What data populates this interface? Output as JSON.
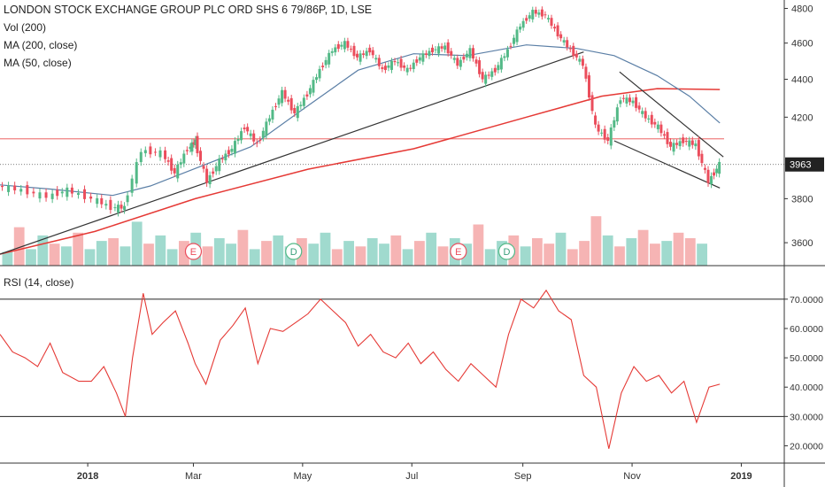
{
  "header": {
    "title": "LONDON STOCK EXCHANGE GROUP PLC ORD SHS 6 79/86P, 1D, LSE",
    "legend": [
      "Vol (200)",
      "MA (200, close)",
      "MA (50, close)"
    ]
  },
  "colors": {
    "up": "#53b987",
    "down": "#eb4d5c",
    "ma200": "#e53935",
    "ma50": "#5b7fa6",
    "trendline": "#333333",
    "resistance": "#f08080",
    "rsi": "#e53935",
    "vol_up": "#8fd3c6",
    "vol_down": "#f4a7a7"
  },
  "price_axis": {
    "ticks": [
      "4800",
      "4600",
      "4400",
      "4200",
      "3800",
      "3600"
    ],
    "last_price": "3963"
  },
  "rsi_panel": {
    "title": "RSI (14, close)",
    "ticks": [
      "70.0000",
      "60.0000",
      "50.0000",
      "40.0000",
      "30.0000",
      "20.0000"
    ],
    "overbought": 70,
    "oversold": 30
  },
  "time_axis": {
    "labels": [
      "2018",
      "Mar",
      "May",
      "Jul",
      "Sep",
      "Nov",
      "2019"
    ]
  },
  "events": [
    {
      "label": "E",
      "date": "2018-03-01"
    },
    {
      "label": "D",
      "date": "2018-04-26"
    },
    {
      "label": "E",
      "date": "2018-07-27"
    },
    {
      "label": "D",
      "date": "2018-08-23"
    }
  ],
  "chart_data": [
    {
      "type": "line",
      "name": "price",
      "x_range": [
        "2017-11-13",
        "2019-01-25"
      ],
      "ylim": [
        3500,
        4850
      ],
      "y_log": true,
      "close_path": [
        [
          "2017-11-13",
          3860
        ],
        [
          "2017-11-27",
          3840
        ],
        [
          "2017-12-11",
          3810
        ],
        [
          "2017-12-22",
          3840
        ],
        [
          "2018-01-05",
          3800
        ],
        [
          "2018-01-15",
          3760
        ],
        [
          "2018-01-22",
          3760
        ],
        [
          "2018-02-01",
          4030
        ],
        [
          "2018-02-12",
          4020
        ],
        [
          "2018-02-19",
          3920
        ],
        [
          "2018-02-26",
          4040
        ],
        [
          "2018-03-02",
          4080
        ],
        [
          "2018-03-09",
          3880
        ],
        [
          "2018-03-16",
          3980
        ],
        [
          "2018-03-23",
          4040
        ],
        [
          "2018-03-30",
          4150
        ],
        [
          "2018-04-06",
          4060
        ],
        [
          "2018-04-13",
          4200
        ],
        [
          "2018-04-20",
          4330
        ],
        [
          "2018-04-27",
          4220
        ],
        [
          "2018-05-04",
          4320
        ],
        [
          "2018-05-11",
          4450
        ],
        [
          "2018-05-18",
          4560
        ],
        [
          "2018-05-25",
          4600
        ],
        [
          "2018-06-01",
          4520
        ],
        [
          "2018-06-08",
          4560
        ],
        [
          "2018-06-15",
          4450
        ],
        [
          "2018-06-22",
          4500
        ],
        [
          "2018-06-29",
          4450
        ],
        [
          "2018-07-06",
          4520
        ],
        [
          "2018-07-13",
          4560
        ],
        [
          "2018-07-20",
          4580
        ],
        [
          "2018-07-27",
          4480
        ],
        [
          "2018-08-03",
          4560
        ],
        [
          "2018-08-10",
          4400
        ],
        [
          "2018-08-17",
          4450
        ],
        [
          "2018-08-24",
          4560
        ],
        [
          "2018-08-31",
          4700
        ],
        [
          "2018-09-07",
          4780
        ],
        [
          "2018-09-14",
          4760
        ],
        [
          "2018-09-21",
          4650
        ],
        [
          "2018-09-28",
          4560
        ],
        [
          "2018-10-05",
          4480
        ],
        [
          "2018-10-12",
          4150
        ],
        [
          "2018-10-19",
          4080
        ],
        [
          "2018-10-26",
          4300
        ],
        [
          "2018-11-02",
          4280
        ],
        [
          "2018-11-09",
          4200
        ],
        [
          "2018-11-16",
          4150
        ],
        [
          "2018-11-23",
          4050
        ],
        [
          "2018-11-30",
          4080
        ],
        [
          "2018-12-07",
          4060
        ],
        [
          "2018-12-14",
          3880
        ],
        [
          "2018-12-20",
          3963
        ]
      ],
      "ma200": [
        [
          "2017-11-13",
          3550
        ],
        [
          "2018-01-05",
          3650
        ],
        [
          "2018-03-02",
          3800
        ],
        [
          "2018-05-04",
          3940
        ],
        [
          "2018-07-02",
          4040
        ],
        [
          "2018-09-03",
          4200
        ],
        [
          "2018-10-15",
          4310
        ],
        [
          "2018-11-15",
          4350
        ],
        [
          "2018-12-20",
          4345
        ]
      ],
      "ma50": [
        [
          "2017-11-13",
          3865
        ],
        [
          "2017-12-11",
          3845
        ],
        [
          "2018-01-15",
          3815
        ],
        [
          "2018-02-05",
          3860
        ],
        [
          "2018-03-01",
          3940
        ],
        [
          "2018-04-02",
          4050
        ],
        [
          "2018-05-01",
          4240
        ],
        [
          "2018-06-01",
          4450
        ],
        [
          "2018-07-02",
          4540
        ],
        [
          "2018-08-01",
          4530
        ],
        [
          "2018-09-03",
          4590
        ],
        [
          "2018-10-01",
          4570
        ],
        [
          "2018-10-22",
          4530
        ],
        [
          "2018-11-15",
          4420
        ],
        [
          "2018-12-03",
          4310
        ],
        [
          "2018-12-20",
          4170
        ]
      ],
      "trendlines": [
        [
          [
            "2017-11-13",
            3550
          ],
          [
            "2018-10-05",
            4550
          ]
        ],
        [
          [
            "2018-10-22",
            4080
          ],
          [
            "2018-12-20",
            3850
          ]
        ],
        [
          [
            "2018-10-25",
            4440
          ],
          [
            "2018-12-22",
            4000
          ]
        ]
      ],
      "resistance_level": 4090
    },
    {
      "type": "line",
      "name": "RSI",
      "title": "RSI (14, close)",
      "ylim": [
        15,
        76
      ],
      "x": [
        "2017-11-13",
        "2017-11-20",
        "2017-11-27",
        "2017-12-04",
        "2017-12-11",
        "2017-12-18",
        "2017-12-27",
        "2018-01-03",
        "2018-01-10",
        "2018-01-17",
        "2018-01-22",
        "2018-01-26",
        "2018-02-01",
        "2018-02-06",
        "2018-02-12",
        "2018-02-19",
        "2018-02-26",
        "2018-03-02",
        "2018-03-08",
        "2018-03-16",
        "2018-03-23",
        "2018-03-30",
        "2018-04-06",
        "2018-04-13",
        "2018-04-20",
        "2018-04-27",
        "2018-05-04",
        "2018-05-11",
        "2018-05-18",
        "2018-05-25",
        "2018-06-01",
        "2018-06-08",
        "2018-06-15",
        "2018-06-22",
        "2018-06-29",
        "2018-07-06",
        "2018-07-13",
        "2018-07-20",
        "2018-07-27",
        "2018-08-03",
        "2018-08-10",
        "2018-08-17",
        "2018-08-24",
        "2018-08-31",
        "2018-09-07",
        "2018-09-14",
        "2018-09-21",
        "2018-09-28",
        "2018-10-05",
        "2018-10-12",
        "2018-10-19",
        "2018-10-26",
        "2018-11-02",
        "2018-11-09",
        "2018-11-16",
        "2018-11-23",
        "2018-11-30",
        "2018-12-07",
        "2018-12-14",
        "2018-12-20"
      ],
      "values": [
        58,
        52,
        50,
        47,
        55,
        45,
        42,
        42,
        47,
        38,
        30,
        50,
        72,
        58,
        62,
        66,
        55,
        48,
        41,
        56,
        61,
        67,
        48,
        60,
        59,
        62,
        65,
        70,
        66,
        62,
        54,
        58,
        52,
        50,
        55,
        48,
        52,
        46,
        42,
        48,
        44,
        40,
        58,
        70,
        67,
        73,
        66,
        63,
        44,
        40,
        19,
        38,
        47,
        42,
        44,
        38,
        42,
        28,
        40,
        41
      ]
    },
    {
      "type": "bar",
      "name": "Vol (200)",
      "values_relative": [
        0.25,
        0.7,
        0.3,
        0.55,
        0.4,
        0.35,
        0.6,
        0.3,
        0.45,
        0.5,
        0.35,
        0.8,
        0.4,
        0.55,
        0.3,
        0.45,
        0.6,
        0.35,
        0.5,
        0.4,
        0.65,
        0.3,
        0.45,
        0.55,
        0.35,
        0.5,
        0.4,
        0.6,
        0.3,
        0.45,
        0.35,
        0.5,
        0.4,
        0.55,
        0.3,
        0.45,
        0.6,
        0.35,
        0.5,
        0.4,
        0.75,
        0.3,
        0.45,
        0.55,
        0.35,
        0.5,
        0.4,
        0.6,
        0.3,
        0.45,
        0.9,
        0.55,
        0.35,
        0.5,
        0.65,
        0.4,
        0.45,
        0.6,
        0.5,
        0.4
      ],
      "up": [
        true,
        false,
        true,
        true,
        false,
        true,
        false,
        true,
        true,
        false,
        true,
        true,
        false,
        true,
        true,
        false,
        true,
        false,
        true,
        true,
        false,
        true,
        false,
        true,
        true,
        false,
        true,
        true,
        false,
        true,
        false,
        true,
        true,
        false,
        true,
        false,
        true,
        false,
        true,
        true,
        false,
        true,
        true,
        false,
        true,
        false,
        false,
        true,
        false,
        false,
        false,
        true,
        false,
        true,
        false,
        false,
        true,
        false,
        false,
        true
      ]
    }
  ]
}
